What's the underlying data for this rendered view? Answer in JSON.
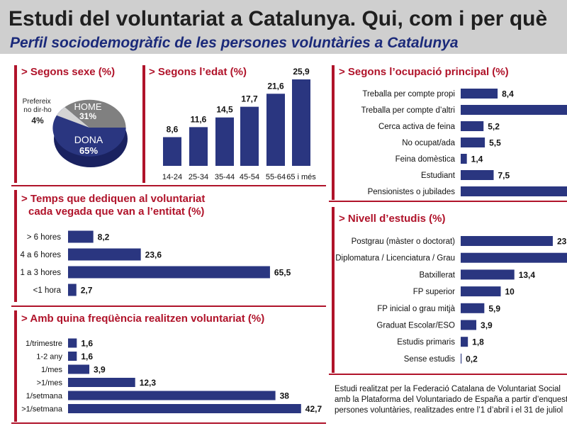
{
  "header": {
    "title": "Estudi del voluntariat a Catalunya. Qui, com i per què",
    "subtitle": "Perfil sociodemogràfic de les persones voluntàries a Catalunya"
  },
  "colors": {
    "bar": "#2a3680",
    "header_bg": "#cfcfcf",
    "title_text": "#1f1f1f",
    "subtitle_text": "#1b2a7a",
    "accent": "#b0132a",
    "home_slice": "#808080",
    "dona_slice": "#2a3680"
  },
  "chart_data": [
    {
      "id": "sexe",
      "type": "pie",
      "title": "> Segons sexe (%)",
      "categories": [
        "HOME",
        "DONA",
        "Prefereix no dir-ho"
      ],
      "values": [
        31,
        65,
        4
      ],
      "value_labels": [
        "31%",
        "65%",
        "4%"
      ]
    },
    {
      "id": "edat",
      "type": "bar",
      "title": "> Segons l’edat (%)",
      "categories": [
        "14-24",
        "25-34",
        "35-44",
        "45-54",
        "55-64",
        "65 i més"
      ],
      "values": [
        8.6,
        11.6,
        14.5,
        17.7,
        21.6,
        25.9
      ],
      "value_labels": [
        "8,6",
        "11,6",
        "14,5",
        "17,7",
        "21,6",
        "25,9"
      ]
    },
    {
      "id": "ocupacio",
      "type": "bar",
      "title": "> Segons l’ocupació principal (%)",
      "orientation": "horizontal",
      "categories": [
        "Treballa per compte propi",
        "Treballa per compte d’altri",
        "Cerca activa de feina",
        "No ocupat/ada",
        "Feina domèstica",
        "Estudiant",
        "Pensionistes o jubilades"
      ],
      "values": [
        8.4,
        null,
        5.2,
        5.5,
        1.4,
        7.5,
        null
      ],
      "value_labels": [
        "8,4",
        "",
        "5,2",
        "5,5",
        "1,4",
        "7,5",
        ""
      ]
    },
    {
      "id": "temps",
      "type": "bar",
      "title": "> Temps que dediquen al voluntariat cada vegada que van a l’entitat (%)",
      "title_lines": [
        "> Temps que dediquen al voluntariat",
        "cada vegada que van a l’entitat (%)"
      ],
      "orientation": "horizontal",
      "categories": [
        "> 6 hores",
        "4 a 6 hores",
        "1 a 3 hores",
        "<1 hora"
      ],
      "values": [
        8.2,
        23.6,
        65.5,
        2.7
      ],
      "value_labels": [
        "8,2",
        "23,6",
        "65,5",
        "2,7"
      ]
    },
    {
      "id": "estudis",
      "type": "bar",
      "title": "> Nivell d’estudis (%)",
      "orientation": "horizontal",
      "categories": [
        "Postgrau (màster o doctorat)",
        "Diplomatura / Licenciatura / Grau",
        "Batxillerat",
        "FP superior",
        "FP inicial o grau mitjà",
        "Graduat Escolar/ESO",
        "Estudis primaris",
        "Sense estudis"
      ],
      "values": [
        23,
        null,
        13.4,
        10,
        5.9,
        3.9,
        1.8,
        0.2
      ],
      "value_labels": [
        "23",
        "",
        "13,4",
        "10",
        "5,9",
        "3,9",
        "1,8",
        "0,2"
      ]
    },
    {
      "id": "frequencia",
      "type": "bar",
      "title": "> Amb quina freqüència realitzen voluntariat (%)",
      "orientation": "horizontal",
      "categories": [
        "1/trimestre",
        "1-2 any",
        "1/mes",
        ">1/mes",
        "1/setmana",
        ">1/setmana"
      ],
      "values": [
        1.6,
        1.6,
        3.9,
        12.3,
        38,
        42.7
      ],
      "value_labels": [
        "1,6",
        "1,6",
        "3,9",
        "12,3",
        "38",
        "42,7"
      ]
    }
  ],
  "footnote": [
    "Estudi realitzat per la Federació Catalana de Voluntariat Social",
    "amb la Plataforma del Voluntariado de España a partir d’enquestes",
    "persones voluntàries, realitzades entre l’1 d’abril i el 31 de juliol"
  ]
}
